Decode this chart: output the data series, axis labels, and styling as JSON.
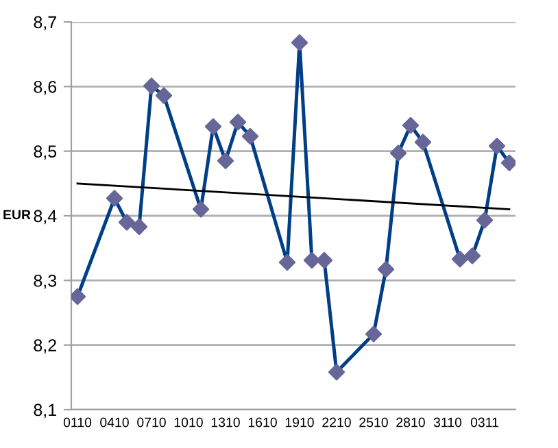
{
  "chart_data": {
    "type": "line",
    "ylabel": "EUR",
    "categories": [
      "0110",
      null,
      null,
      "0410",
      null,
      null,
      "0710",
      null,
      null,
      "1010",
      null,
      null,
      "1310",
      null,
      null,
      "1610",
      null,
      null,
      "1910",
      null,
      null,
      "2210",
      null,
      null,
      "2510",
      null,
      null,
      "2810",
      null,
      null,
      "3110",
      null,
      null,
      "0311",
      null,
      null
    ],
    "ylim": [
      8.1,
      8.7
    ],
    "yticks": [
      {
        "value": 8.1,
        "label": "8,1"
      },
      {
        "value": 8.2,
        "label": "8,2"
      },
      {
        "value": 8.3,
        "label": "8,3"
      },
      {
        "value": 8.4,
        "label": "8,4"
      },
      {
        "value": 8.5,
        "label": "8,5"
      },
      {
        "value": 8.6,
        "label": "8,6"
      },
      {
        "value": 8.7,
        "label": "8,7"
      }
    ],
    "grid": "y",
    "marker": "none",
    "series": [
      {
        "color": "#003f87",
        "values": [
          8.275,
          null,
          null,
          8.427,
          8.39,
          8.383,
          8.601,
          8.586,
          null,
          null,
          8.41,
          8.538,
          8.485,
          8.545,
          8.523,
          null,
          null,
          8.328,
          8.668,
          8.331,
          8.331,
          8.158,
          null,
          null,
          8.217,
          8.317,
          8.497,
          8.54,
          8.514,
          null,
          null,
          8.333,
          8.338,
          8.393,
          8.508,
          8.482
        ]
      },
      {
        "type": "scatter",
        "color": "#666699",
        "marker": "diamond",
        "values": [
          8.275,
          null,
          null,
          8.427,
          8.39,
          8.383,
          8.601,
          8.586,
          null,
          null,
          8.41,
          8.538,
          8.485,
          8.545,
          8.523,
          null,
          null,
          8.328,
          8.668,
          8.331,
          8.331,
          8.158,
          null,
          null,
          8.217,
          8.317,
          8.497,
          8.54,
          8.514,
          null,
          null,
          8.333,
          8.338,
          8.393,
          8.508,
          8.482
        ]
      },
      {
        "color": "#000000",
        "values": [
          8.45,
          null,
          null,
          null,
          null,
          null,
          null,
          null,
          null,
          null,
          null,
          null,
          null,
          null,
          null,
          null,
          null,
          null,
          null,
          null,
          null,
          null,
          null,
          null,
          null,
          null,
          null,
          null,
          null,
          null,
          null,
          null,
          null,
          null,
          null,
          8.41
        ]
      }
    ]
  }
}
